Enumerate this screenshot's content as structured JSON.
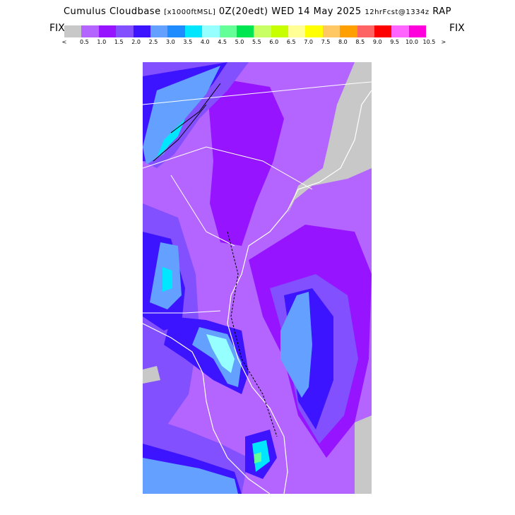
{
  "header": {
    "product": "Cumulus Cloudbase",
    "units": "[x1000ftMSL]",
    "init": "0Z(20edt)",
    "valid_date": "WED 14 May 2025",
    "forecast": "12hrFcst@1334z",
    "model": "RAP"
  },
  "legend": {
    "left_label": "FIX",
    "right_label": "FIX",
    "lt_marker": "<",
    "gt_marker": ">",
    "colors": [
      "#c8c8c8",
      "#b464ff",
      "#9614ff",
      "#8250ff",
      "#3c14ff",
      "#64a0ff",
      "#1e8cff",
      "#00e6ff",
      "#96ffff",
      "#64ff96",
      "#00e650",
      "#c8ff64",
      "#c8ff00",
      "#ffff96",
      "#ffff00",
      "#ffc864",
      "#ffa000",
      "#ff6464",
      "#ff0000",
      "#ff64ff",
      "#ff00dc"
    ],
    "tick_labels": [
      "0.5",
      "1.0",
      "1.5",
      "2.0",
      "2.5",
      "3.0",
      "3.5",
      "4.0",
      "4.5",
      "5.0",
      "5.5",
      "6.0",
      "6.5",
      "7.0",
      "7.5",
      "8.0",
      "8.5",
      "9.0",
      "9.5",
      "10.0",
      "10.5"
    ]
  },
  "map": {
    "region": "Southeast US (Carolinas, Georgia, Florida)",
    "background_color": "#b464ff"
  }
}
